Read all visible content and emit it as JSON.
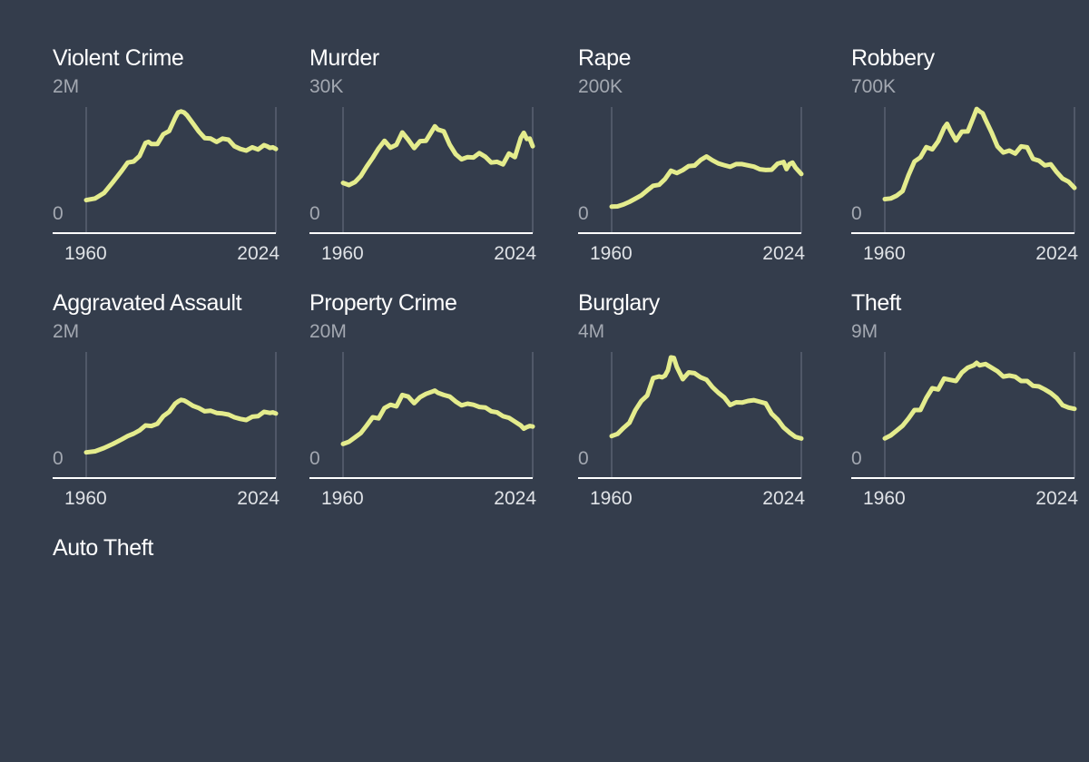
{
  "colors": {
    "background": "#343d4c",
    "line": "#e4ec8d",
    "grid": "#5a6272",
    "axis": "#ffffff",
    "title": "#ffffff",
    "tick": "#a3a8b1"
  },
  "chart_data": [
    {
      "type": "line",
      "title": "Violent Crime",
      "ymax_label": "2M",
      "ymin_label": "0",
      "x_start": "1960",
      "x_end": "2024",
      "xlim": [
        1960,
        2024
      ],
      "ylim": [
        0,
        2000000
      ],
      "x": [
        1960,
        1963,
        1966,
        1969,
        1972,
        1974,
        1976,
        1978,
        1980,
        1981,
        1982,
        1984,
        1986,
        1988,
        1990,
        1991,
        1992,
        1993,
        1994,
        1996,
        1998,
        2000,
        2002,
        2004,
        2006,
        2008,
        2010,
        2012,
        2014,
        2016,
        2018,
        2020,
        2021,
        2022,
        2023,
        2024
      ],
      "values": [
        290000,
        320000,
        420000,
        620000,
        830000,
        980000,
        1000000,
        1100000,
        1340000,
        1360000,
        1320000,
        1320000,
        1500000,
        1560000,
        1800000,
        1900000,
        1920000,
        1900000,
        1850000,
        1700000,
        1550000,
        1430000,
        1420000,
        1360000,
        1420000,
        1400000,
        1280000,
        1230000,
        1200000,
        1260000,
        1220000,
        1300000,
        1280000,
        1250000,
        1260000,
        1230000
      ]
    },
    {
      "type": "line",
      "title": "Murder",
      "ymax_label": "30K",
      "ymin_label": "0",
      "x_start": "1960",
      "x_end": "2024",
      "xlim": [
        1960,
        2024
      ],
      "ylim": [
        0,
        30000
      ],
      "x": [
        1960,
        1962,
        1964,
        1966,
        1968,
        1970,
        1972,
        1974,
        1976,
        1978,
        1980,
        1982,
        1984,
        1986,
        1988,
        1990,
        1991,
        1992,
        1994,
        1996,
        1998,
        2000,
        2002,
        2004,
        2006,
        2008,
        2010,
        2012,
        2014,
        2016,
        2018,
        2020,
        2021,
        2022,
        2023,
        2024
      ],
      "values": [
        9100,
        8500,
        9300,
        11000,
        13600,
        16000,
        18600,
        20700,
        18800,
        19600,
        23000,
        21000,
        18700,
        20600,
        20700,
        23400,
        24700,
        23800,
        23300,
        19600,
        17000,
        15600,
        16200,
        16100,
        17300,
        16300,
        14700,
        14900,
        14200,
        17200,
        16200,
        21500,
        22900,
        21200,
        21300,
        19200
      ]
    },
    {
      "type": "line",
      "title": "Rape",
      "ymax_label": "200K",
      "ymin_label": "0",
      "x_start": "1960",
      "x_end": "2024",
      "xlim": [
        1960,
        2024
      ],
      "ylim": [
        0,
        200000
      ],
      "x": [
        1960,
        1962,
        1964,
        1966,
        1968,
        1970,
        1972,
        1974,
        1976,
        1978,
        1980,
        1982,
        1984,
        1986,
        1988,
        1990,
        1992,
        1994,
        1996,
        1998,
        2000,
        2002,
        2004,
        2006,
        2008,
        2010,
        2012,
        2014,
        2016,
        2018,
        2019,
        2020,
        2021,
        2022,
        2023,
        2024
      ],
      "values": [
        17000,
        17500,
        21000,
        25800,
        31700,
        37900,
        46800,
        55400,
        57100,
        67600,
        83000,
        78800,
        84200,
        91500,
        92500,
        102600,
        109100,
        102200,
        96300,
        93100,
        90200,
        95200,
        95100,
        92800,
        90500,
        85600,
        84400,
        84900,
        96000,
        99000,
        86000,
        95000,
        98000,
        89000,
        83000,
        77000
      ]
    },
    {
      "type": "line",
      "title": "Robbery",
      "ymax_label": "700K",
      "ymin_label": "0",
      "x_start": "1960",
      "x_end": "2024",
      "xlim": [
        1960,
        2024
      ],
      "ylim": [
        0,
        700000
      ],
      "x": [
        1960,
        1962,
        1964,
        1966,
        1968,
        1970,
        1972,
        1974,
        1976,
        1978,
        1980,
        1981,
        1982,
        1984,
        1986,
        1988,
        1990,
        1991,
        1992,
        1993,
        1994,
        1996,
        1998,
        2000,
        2002,
        2004,
        2006,
        2008,
        2010,
        2012,
        2014,
        2016,
        2018,
        2020,
        2022,
        2024
      ],
      "values": [
        108000,
        112000,
        130000,
        160000,
        262000,
        350000,
        376000,
        442000,
        428000,
        480000,
        565000,
        592000,
        553000,
        485000,
        542000,
        543000,
        639000,
        688000,
        672000,
        660000,
        618000,
        537000,
        447000,
        408000,
        420000,
        401000,
        447000,
        441000,
        367000,
        355000,
        325000,
        332000,
        282000,
        240000,
        220000,
        180000
      ]
    },
    {
      "type": "line",
      "title": "Aggravated Assault",
      "ymax_label": "2M",
      "ymin_label": "0",
      "x_start": "1960",
      "x_end": "2024",
      "xlim": [
        1960,
        2024
      ],
      "ylim": [
        0,
        2000000
      ],
      "x": [
        1960,
        1963,
        1966,
        1969,
        1972,
        1974,
        1976,
        1978,
        1980,
        1982,
        1984,
        1986,
        1988,
        1990,
        1991,
        1992,
        1993,
        1994,
        1996,
        1998,
        2000,
        2002,
        2004,
        2006,
        2008,
        2010,
        2012,
        2014,
        2016,
        2018,
        2020,
        2021,
        2022,
        2023,
        2024
      ],
      "values": [
        155000,
        175000,
        235000,
        310000,
        395000,
        455000,
        500000,
        560000,
        650000,
        640000,
        680000,
        820000,
        900000,
        1050000,
        1090000,
        1120000,
        1110000,
        1080000,
        1010000,
        970000,
        910000,
        920000,
        880000,
        870000,
        850000,
        800000,
        770000,
        750000,
        810000,
        820000,
        900000,
        890000,
        880000,
        890000,
        870000
      ]
    },
    {
      "type": "line",
      "title": "Property Crime",
      "ymax_label": "20M",
      "ymin_label": "0",
      "x_start": "1960",
      "x_end": "2024",
      "xlim": [
        1960,
        2024
      ],
      "ylim": [
        0,
        20000000
      ],
      "x": [
        1960,
        1962,
        1964,
        1966,
        1968,
        1970,
        1972,
        1974,
        1976,
        1978,
        1980,
        1982,
        1984,
        1986,
        1988,
        1990,
        1991,
        1992,
        1994,
        1996,
        1998,
        2000,
        2002,
        2004,
        2006,
        2008,
        2010,
        2012,
        2014,
        2016,
        2018,
        2020,
        2021,
        2022,
        2023,
        2024
      ],
      "values": [
        3100000,
        3500000,
        4300000,
        5100000,
        6500000,
        8000000,
        7800000,
        9700000,
        10300000,
        10000000,
        12100000,
        11800000,
        10600000,
        11700000,
        12300000,
        12700000,
        12900000,
        12500000,
        12100000,
        11800000,
        10900000,
        10200000,
        10500000,
        10300000,
        9900000,
        9800000,
        9100000,
        8900000,
        8200000,
        7900000,
        7200000,
        6500000,
        5900000,
        6200000,
        6400000,
        6300000
      ]
    },
    {
      "type": "line",
      "title": "Burglary",
      "ymax_label": "4M",
      "ymin_label": "0",
      "x_start": "1960",
      "x_end": "2024",
      "xlim": [
        1960,
        2024
      ],
      "ylim": [
        0,
        4000000
      ],
      "x": [
        1960,
        1962,
        1964,
        1966,
        1968,
        1970,
        1972,
        1974,
        1976,
        1977,
        1978,
        1979,
        1980,
        1981,
        1982,
        1984,
        1986,
        1988,
        1990,
        1992,
        1994,
        1996,
        1998,
        2000,
        2002,
        2004,
        2006,
        2008,
        2010,
        2012,
        2014,
        2016,
        2018,
        2020,
        2022,
        2024
      ],
      "values": [
        910000,
        990000,
        1210000,
        1400000,
        1860000,
        2200000,
        2400000,
        3040000,
        3100000,
        3070000,
        3130000,
        3330000,
        3800000,
        3780000,
        3450000,
        3000000,
        3250000,
        3220000,
        3070000,
        2980000,
        2710000,
        2500000,
        2330000,
        2050000,
        2150000,
        2140000,
        2200000,
        2230000,
        2170000,
        2110000,
        1730000,
        1520000,
        1230000,
        1040000,
        880000,
        820000
      ]
    },
    {
      "type": "line",
      "title": "Theft",
      "ymax_label": "9M",
      "ymin_label": "0",
      "x_start": "1960",
      "x_end": "2024",
      "xlim": [
        1960,
        2024
      ],
      "ylim": [
        0,
        9000000
      ],
      "x": [
        1960,
        1962,
        1964,
        1966,
        1968,
        1970,
        1972,
        1974,
        1975,
        1976,
        1978,
        1980,
        1982,
        1984,
        1986,
        1988,
        1990,
        1991,
        1992,
        1994,
        1996,
        1998,
        2000,
        2002,
        2004,
        2006,
        2008,
        2010,
        2012,
        2014,
        2016,
        2018,
        2020,
        2022,
        2024
      ],
      "values": [
        1850000,
        2100000,
        2500000,
        2900000,
        3500000,
        4200000,
        4200000,
        5200000,
        5600000,
        6000000,
        5900000,
        6800000,
        6700000,
        6600000,
        7300000,
        7700000,
        7900000,
        8100000,
        7900000,
        8000000,
        7700000,
        7400000,
        6970000,
        7050000,
        6950000,
        6600000,
        6600000,
        6200000,
        6150000,
        5900000,
        5600000,
        5200000,
        4600000,
        4400000,
        4300000
      ]
    },
    {
      "type": "line",
      "title": "Auto Theft",
      "ymax_label": "",
      "ymin_label": "",
      "x_start": "",
      "x_end": "",
      "x": [],
      "values": []
    }
  ]
}
